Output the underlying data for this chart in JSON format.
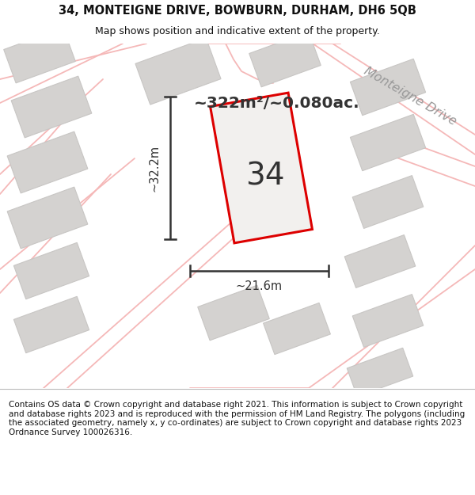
{
  "title": "34, MONTEIGNE DRIVE, BOWBURN, DURHAM, DH6 5QB",
  "subtitle": "Map shows position and indicative extent of the property.",
  "area_text": "~322m²/~0.080ac.",
  "dim_width": "~21.6m",
  "dim_height": "~32.2m",
  "plot_number": "34",
  "road_label": "Monteigne Drive",
  "copyright_text": "Contains OS data © Crown copyright and database right 2021. This information is subject to Crown copyright and database rights 2023 and is reproduced with the permission of HM Land Registry. The polygons (including the associated geometry, namely x, y co-ordinates) are subject to Crown copyright and database rights 2023 Ordnance Survey 100026316.",
  "bg_color": "#f2f0ee",
  "road_color": "#f5b8b8",
  "building_color": "#d4d2d0",
  "building_edge": "#c8c6c4",
  "plot_fill": "#f2f0ee",
  "plot_color": "#dd0000",
  "dim_color": "#333333",
  "text_color": "#111111",
  "title_fontsize": 10.5,
  "subtitle_fontsize": 9.0,
  "area_fontsize": 14.5,
  "road_label_fontsize": 11.5,
  "dim_fontsize": 10.5,
  "plot_num_fontsize": 28
}
